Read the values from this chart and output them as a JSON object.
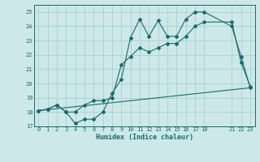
{
  "xlabel": "Humidex (Indice chaleur)",
  "bg_color": "#cce8e8",
  "grid_color": "#aed0d0",
  "line_color": "#1a6b6b",
  "xlim": [
    -0.5,
    23.5
  ],
  "ylim": [
    17,
    25.5
  ],
  "xtick_positions": [
    0,
    1,
    2,
    3,
    4,
    5,
    6,
    7,
    8,
    9,
    10,
    11,
    12,
    13,
    14,
    15,
    16,
    17,
    18,
    21,
    22,
    23
  ],
  "xtick_labels": [
    "0",
    "1",
    "2",
    "3",
    "4",
    "5",
    "6",
    "7",
    "8",
    "9",
    "10",
    "11",
    "12",
    "13",
    "14",
    "15",
    "16",
    "17",
    "18",
    "21",
    "22",
    "23"
  ],
  "ytick_positions": [
    17,
    18,
    19,
    20,
    21,
    22,
    23,
    24,
    25
  ],
  "ytick_labels": [
    "17",
    "18",
    "19",
    "20",
    "21",
    "22",
    "23",
    "24",
    "25"
  ],
  "line1_x": [
    0,
    1,
    2,
    3,
    4,
    5,
    6,
    7,
    8,
    9,
    10,
    11,
    12,
    13,
    14,
    15,
    16,
    17,
    18,
    21,
    22,
    23
  ],
  "line1_y": [
    18.1,
    18.2,
    18.5,
    18.0,
    17.2,
    17.5,
    17.5,
    18.0,
    19.3,
    20.3,
    23.2,
    24.5,
    23.3,
    24.4,
    23.3,
    23.3,
    24.5,
    25.0,
    25.0,
    24.0,
    21.9,
    19.7
  ],
  "line2_x": [
    0,
    1,
    2,
    3,
    4,
    5,
    6,
    7,
    8,
    9,
    10,
    11,
    12,
    13,
    14,
    15,
    16,
    17,
    18,
    21,
    22,
    23
  ],
  "line2_y": [
    18.1,
    18.2,
    18.5,
    18.0,
    18.0,
    18.5,
    18.8,
    18.8,
    19.0,
    21.3,
    21.9,
    22.5,
    22.2,
    22.5,
    22.8,
    22.8,
    23.3,
    24.0,
    24.3,
    24.3,
    21.5,
    19.8
  ],
  "line3_x": [
    0,
    23
  ],
  "line3_y": [
    18.1,
    19.7
  ],
  "marker_size": 2.0,
  "line_width": 0.8,
  "tick_fontsize": 5.0,
  "xlabel_fontsize": 6.0
}
